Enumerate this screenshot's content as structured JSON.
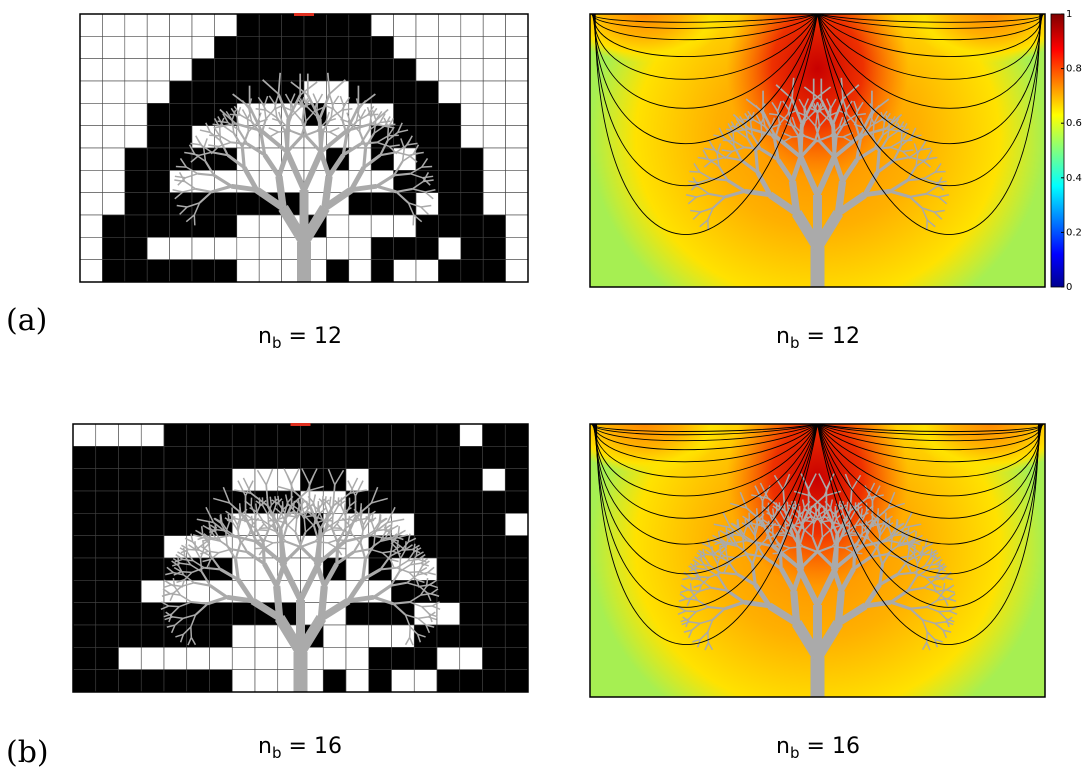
{
  "panels": [
    {
      "label": "(a)",
      "captions": [
        {
          "symbol": "n",
          "subscript": "b",
          "value": "= 12"
        },
        {
          "symbol": "n",
          "subscript": "b",
          "value": "= 12"
        }
      ]
    },
    {
      "label": "(b)",
      "captions": [
        {
          "symbol": "n",
          "subscript": "b",
          "value": "= 16"
        },
        {
          "symbol": "n",
          "subscript": "b",
          "value": "= 16"
        }
      ]
    }
  ],
  "colorbar": {
    "lim": [
      0,
      1
    ],
    "ticks": [
      0,
      0.2,
      0.4,
      0.6,
      0.8,
      1
    ]
  }
}
